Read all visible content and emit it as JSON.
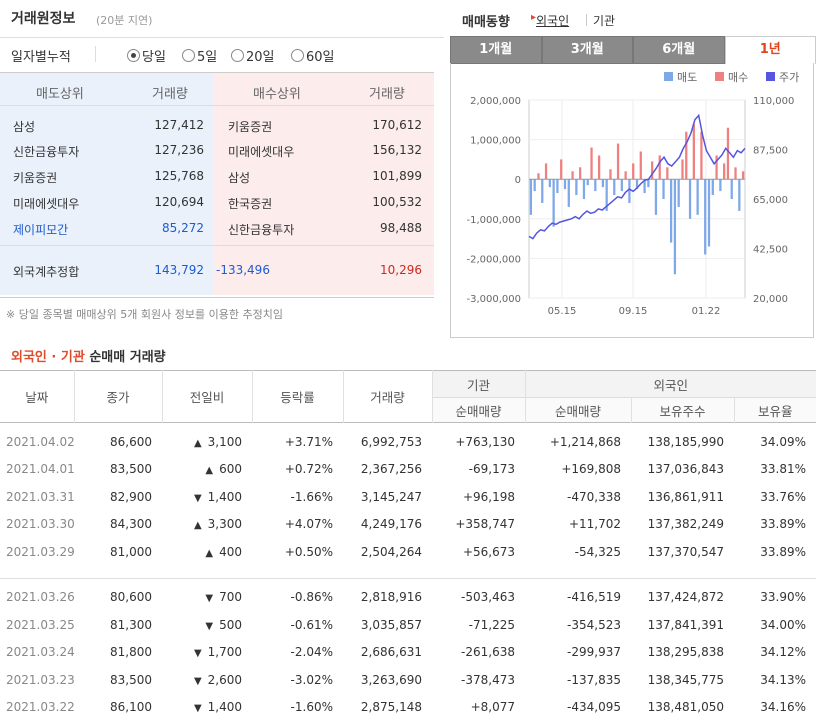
{
  "broker": {
    "title": "거래원정보",
    "subtitle": "(20분 지연)",
    "period_label": "일자별누적",
    "periods": [
      "당일",
      "5일",
      "20일",
      "60일"
    ],
    "selected_period": "당일",
    "headers": {
      "sell": "매도상위",
      "volume": "거래량",
      "buy": "매수상위"
    },
    "rows": [
      {
        "sell": "삼성",
        "sell_vol": "127,412",
        "buy": "키움증권",
        "buy_vol": "170,612"
      },
      {
        "sell": "신한금융투자",
        "sell_vol": "127,236",
        "buy": "미래에셋대우",
        "buy_vol": "156,132"
      },
      {
        "sell": "키움증권",
        "sell_vol": "125,768",
        "buy": "삼성",
        "buy_vol": "101,899"
      },
      {
        "sell": "미래에셋대우",
        "sell_vol": "120,694",
        "buy": "한국증권",
        "buy_vol": "100,532"
      },
      {
        "sell": "제이피모간",
        "sell_vol": "85,272",
        "buy": "신한금융투자",
        "buy_vol": "98,488"
      }
    ],
    "foreign": {
      "label": "외국계추정합",
      "sell": "143,792",
      "net": "-133,496",
      "buy": "10,296"
    },
    "note": "※ 당일 종목별 매매상위 5개 회원사 정보를 이용한 추정치임"
  },
  "trend": {
    "title": "매매동향",
    "foreign": "외국인",
    "institution": "기관",
    "tabs": [
      "1개월",
      "3개월",
      "6개월",
      "1년"
    ],
    "active_tab": "1년",
    "colors": {
      "sell": "#7fa8e8",
      "buy": "#f08080",
      "price": "#5555e0"
    }
  },
  "chart_data": {
    "type": "bar",
    "legend": [
      "매도",
      "매수",
      "주가"
    ],
    "legend_position": "top-right",
    "x_ticks": [
      "05.15",
      "09.15",
      "01.22"
    ],
    "y_left_ticks": [
      "2,000,000",
      "1,000,000",
      "0",
      "-1,000,000",
      "-2,000,000",
      "-3,000,000"
    ],
    "y_left_range": [
      -3000000,
      2000000
    ],
    "y_right_ticks": [
      "110,000",
      "87,500",
      "65,000",
      "42,500",
      "20,000"
    ],
    "y_right_range": [
      20000,
      110000
    ],
    "grid": true,
    "price_series": [
      48000,
      47000,
      49500,
      51000,
      50500,
      52500,
      54000,
      53500,
      54500,
      55000,
      55500,
      56000,
      57000,
      56000,
      58000,
      59500,
      58500,
      59000,
      60500,
      60000,
      61500,
      63000,
      64500,
      66000,
      65500,
      68000,
      69500,
      68500,
      70000,
      72000,
      73500,
      74000,
      76500,
      79000,
      82000,
      84000,
      81000,
      80000,
      82000,
      84000,
      88000,
      91000,
      95000,
      101000,
      103000,
      94000,
      87000,
      84000,
      81000,
      83000,
      85000,
      88000,
      86000,
      84000,
      87000,
      86000,
      88000
    ],
    "net_series": [
      -900000,
      -300000,
      150000,
      -600000,
      400000,
      -200000,
      -1200000,
      -350000,
      500000,
      -250000,
      -700000,
      200000,
      -400000,
      300000,
      -500000,
      -150000,
      800000,
      -300000,
      600000,
      -200000,
      -800000,
      250000,
      -400000,
      900000,
      -300000,
      200000,
      -600000,
      400000,
      -250000,
      700000,
      -350000,
      -200000,
      450000,
      -900000,
      600000,
      -500000,
      300000,
      -1600000,
      -2400000,
      -700000,
      500000,
      1200000,
      -1000000,
      1400000,
      -900000,
      1200000,
      -1900000,
      -1700000,
      -400000,
      600000,
      -300000,
      400000,
      1300000,
      -500000,
      300000,
      -800000,
      200000
    ]
  },
  "table": {
    "title_red": "외국인 · 기관",
    "title_black": "순매매 거래량",
    "headers": {
      "date": "날짜",
      "close": "종가",
      "change": "전일비",
      "rate": "등락률",
      "volume": "거래량",
      "inst": "기관",
      "foreign": "외국인",
      "inst_net": "순매매량",
      "foreign_net": "순매매량",
      "foreign_hold": "보유주수",
      "foreign_ratio": "보유율"
    },
    "group1": [
      {
        "date": "2021.04.02",
        "close": "86,600",
        "dir": "up",
        "change": "3,100",
        "rate": "+3.71%",
        "volume": "6,992,753",
        "inst": "+763,130",
        "foreign": "+1,214,868",
        "hold": "138,185,990",
        "ratio": "34.09%"
      },
      {
        "date": "2021.04.01",
        "close": "83,500",
        "dir": "up",
        "change": "600",
        "rate": "+0.72%",
        "volume": "2,367,256",
        "inst": "-69,173",
        "foreign": "+169,808",
        "hold": "137,036,843",
        "ratio": "33.81%"
      },
      {
        "date": "2021.03.31",
        "close": "82,900",
        "dir": "down",
        "change": "1,400",
        "rate": "-1.66%",
        "volume": "3,145,247",
        "inst": "+96,198",
        "foreign": "-470,338",
        "hold": "136,861,911",
        "ratio": "33.76%"
      },
      {
        "date": "2021.03.30",
        "close": "84,300",
        "dir": "up",
        "change": "3,300",
        "rate": "+4.07%",
        "volume": "4,249,176",
        "inst": "+358,747",
        "foreign": "+11,702",
        "hold": "137,382,249",
        "ratio": "33.89%"
      },
      {
        "date": "2021.03.29",
        "close": "81,000",
        "dir": "up",
        "change": "400",
        "rate": "+0.50%",
        "volume": "2,504,264",
        "inst": "+56,673",
        "foreign": "-54,325",
        "hold": "137,370,547",
        "ratio": "33.89%"
      }
    ],
    "group2": [
      {
        "date": "2021.03.26",
        "close": "80,600",
        "dir": "down",
        "change": "700",
        "rate": "-0.86%",
        "volume": "2,818,916",
        "inst": "-503,463",
        "foreign": "-416,519",
        "hold": "137,424,872",
        "ratio": "33.90%"
      },
      {
        "date": "2021.03.25",
        "close": "81,300",
        "dir": "down",
        "change": "500",
        "rate": "-0.61%",
        "volume": "3,035,857",
        "inst": "-71,225",
        "foreign": "-354,523",
        "hold": "137,841,391",
        "ratio": "34.00%"
      },
      {
        "date": "2021.03.24",
        "close": "81,800",
        "dir": "down",
        "change": "1,700",
        "rate": "-2.04%",
        "volume": "2,686,631",
        "inst": "-261,638",
        "foreign": "-299,937",
        "hold": "138,295,838",
        "ratio": "34.12%"
      },
      {
        "date": "2021.03.23",
        "close": "83,500",
        "dir": "down",
        "change": "2,600",
        "rate": "-3.02%",
        "volume": "3,263,690",
        "inst": "-378,473",
        "foreign": "-137,835",
        "hold": "138,345,775",
        "ratio": "34.13%"
      },
      {
        "date": "2021.03.22",
        "close": "86,100",
        "dir": "down",
        "change": "1,400",
        "rate": "-1.60%",
        "volume": "2,875,148",
        "inst": "+8,077",
        "foreign": "-434,095",
        "hold": "138,481,050",
        "ratio": "34.16%"
      }
    ]
  }
}
